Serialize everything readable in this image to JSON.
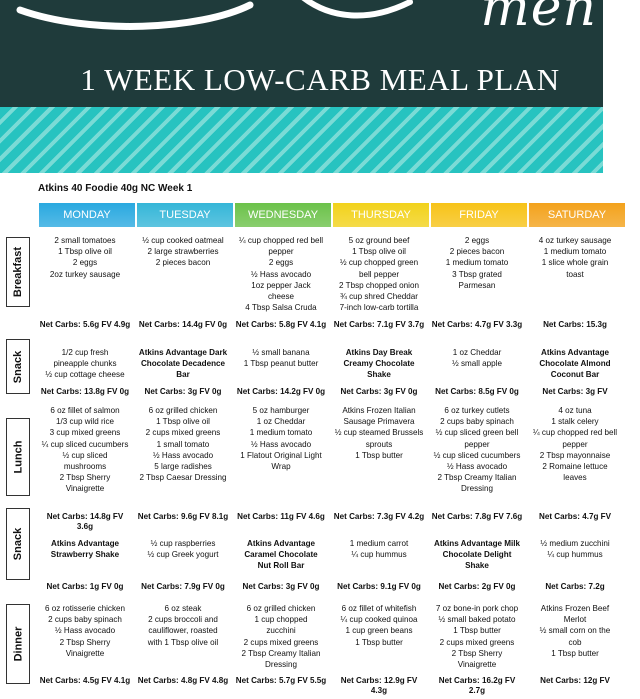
{
  "header": {
    "script_word": "men",
    "title": "1 WEEK LOW-CARB MEAL PLAN"
  },
  "plan": {
    "week_label": "Atkins 40 Foodie 40g NC Week 1",
    "days": [
      "MONDAY",
      "TUESDAY",
      "WEDNESDAY",
      "THURSDAY",
      "FRIDAY",
      "SATURDAY"
    ],
    "day_colors": [
      "#2aa9e0",
      "#35b6d8",
      "#6cc24a",
      "#f2d21b",
      "#f7c318",
      "#f3a21c"
    ],
    "meal_labels": [
      "Breakfast",
      "Snack",
      "Lunch",
      "Snack",
      "Dinner"
    ],
    "breakfast": [
      "2 small tomatoes\n1 Tbsp olive oil\n2 eggs\n2oz turkey sausage",
      "½ cup cooked oatmeal\n2 large strawberries\n2 pieces bacon",
      "¼ cup chopped red bell\npepper\n2 eggs\n½ Hass avocado\n1oz pepper Jack\ncheese\n4 Tbsp Salsa Cruda",
      "5 oz ground beef\n1 Tbsp olive oil\n½ cup chopped green\nbell pepper\n2 Tbsp chopped onion\n¾ cup shred Cheddar\n7-inch low-carb tortilla",
      "2 eggs\n2 pieces bacon\n1 medium tomato\n3 Tbsp grated\nParmesan",
      "4 oz turkey sausage\n1 medium tomato\n1 slice whole grain\ntoast"
    ],
    "breakfast_carbs": [
      "Net Carbs: 5.6g  FV 4.9g",
      "Net Carbs: 14.4g FV 0g",
      "Net Carbs: 5.8g FV 4.1g",
      "Net Carbs: 7.1g  FV 3.7g",
      "Net Carbs: 4.7g FV 3.3g",
      "Net Carbs: 15.3g"
    ],
    "snack1": [
      "1/2 cup fresh\npineapple chunks\n½ cup cottage cheese",
      "Atkins Advantage Dark\nChocolate Decadence\nBar",
      "½ small banana\n1 Tbsp peanut butter",
      "Atkins Day Break\nCreamy Chocolate\nShake",
      "1 oz Cheddar\n½ small apple",
      "Atkins Advantage\nChocolate Almond\nCoconut Bar"
    ],
    "snack1_bold": [
      false,
      true,
      false,
      true,
      false,
      true
    ],
    "snack1_carbs": [
      "Net Carbs: 13.8g FV 0g",
      "Net Carbs: 3g FV 0g",
      "Net Carbs: 14.2g FV 0g",
      "Net Carbs: 3g  FV 0g",
      "Net Carbs: 8.5g  FV 0g",
      "Net Carbs: 3g  FV"
    ],
    "lunch": [
      "6 oz fillet of salmon\n1/3 cup wild rice\n3 cup mixed greens\n¼ cup sliced cucumbers\n½ cup sliced\nmushrooms\n2 Tbsp Sherry\nVinaigrette",
      "6 oz grilled chicken\n1 Tbsp olive oil\n2 cups mixed greens\n1 small tomato\n½ Hass avocado\n5 large radishes\n2 Tbsp Caesar Dressing",
      "5 oz hamburger\n1 oz Cheddar\n1 medium tomato\n½ Hass avocado\n1 Flatout Original Light\nWrap",
      "Atkins Frozen Italian\nSausage Primavera\n½ cup steamed Brussels\nsprouts\n1 Tbsp butter",
      "6 oz turkey cutlets\n2 cups baby spinach\n½ cup sliced green bell\npepper\n½ cup sliced cucumbers\n½ Hass avocado\n2 Tbsp Creamy Italian\nDressing",
      "4 oz tuna\n1 stalk celery\n¼ cup chopped red bell\npepper\n2 Tbsp mayonnaise\n2 Romaine lettuce\nleaves"
    ],
    "lunch_carbs": [
      "Net Carbs: 14.8g  FV\n3.6g",
      "Net Carbs: 9.6g FV 8.1g",
      "Net Carbs: 11g  FV 4.6g",
      "Net Carbs: 7.3g  FV 4.2g",
      "Net Carbs: 7.8g  FV 7.6g",
      "Net Carbs: 4.7g  FV"
    ],
    "snack2": [
      "Atkins Advantage\nStrawberry Shake",
      "½ cup raspberries\n½ cup Greek yogurt",
      "Atkins Advantage\nCaramel Chocolate\nNut Roll Bar",
      "1 medium carrot\n¼ cup hummus",
      "Atkins Advantage Milk\nChocolate Delight\nShake",
      "½ medium zucchini\n¼ cup hummus"
    ],
    "snack2_bold": [
      true,
      false,
      true,
      false,
      true,
      false
    ],
    "snack2_carbs": [
      "Net Carbs: 1g  FV 0g",
      "Net Carbs: 7.9g FV 0g",
      "Net Carbs: 3g  FV 0g",
      "Net Carbs: 9.1g  FV 0g",
      "Net Carbs: 2g  FV 0g",
      "Net Carbs: 7.2g"
    ],
    "dinner": [
      "6 oz rotisserie chicken\n2 cups baby spinach\n½ Hass avocado\n2 Tbsp Sherry\nVinaigrette",
      "6 oz steak\n2 cups broccoli and\ncauliflower, roasted\nwith 1 Tbsp olive oil",
      "6 oz grilled chicken\n1 cup chopped\nzucchini\n2 cups mixed greens\n2 Tbsp Creamy Italian\nDressing",
      "6 oz fillet of whitefish\n¼ cup cooked quinoa\n1 cup green beans\n1 Tbsp butter",
      "7 oz bone-in pork chop\n½ small baked potato\n1 Tbsp butter\n2 cups mixed greens\n2 Tbsp Sherry\nVinaigrette",
      "Atkins Frozen Beef\nMerlot\n½ small corn on the\ncob\n1 Tbsp butter"
    ],
    "dinner_carbs": [
      "Net Carbs: 4.5g  FV 4.1g",
      "Net Carbs: 4.8g FV 4.8g",
      "Net Carbs: 5.7g FV 5.5g",
      "Net Carbs: 12.9g  FV\n4.3g",
      "Net Carbs: 16.2g  FV\n2.7g",
      "Net Carbs: 12g  FV"
    ]
  }
}
